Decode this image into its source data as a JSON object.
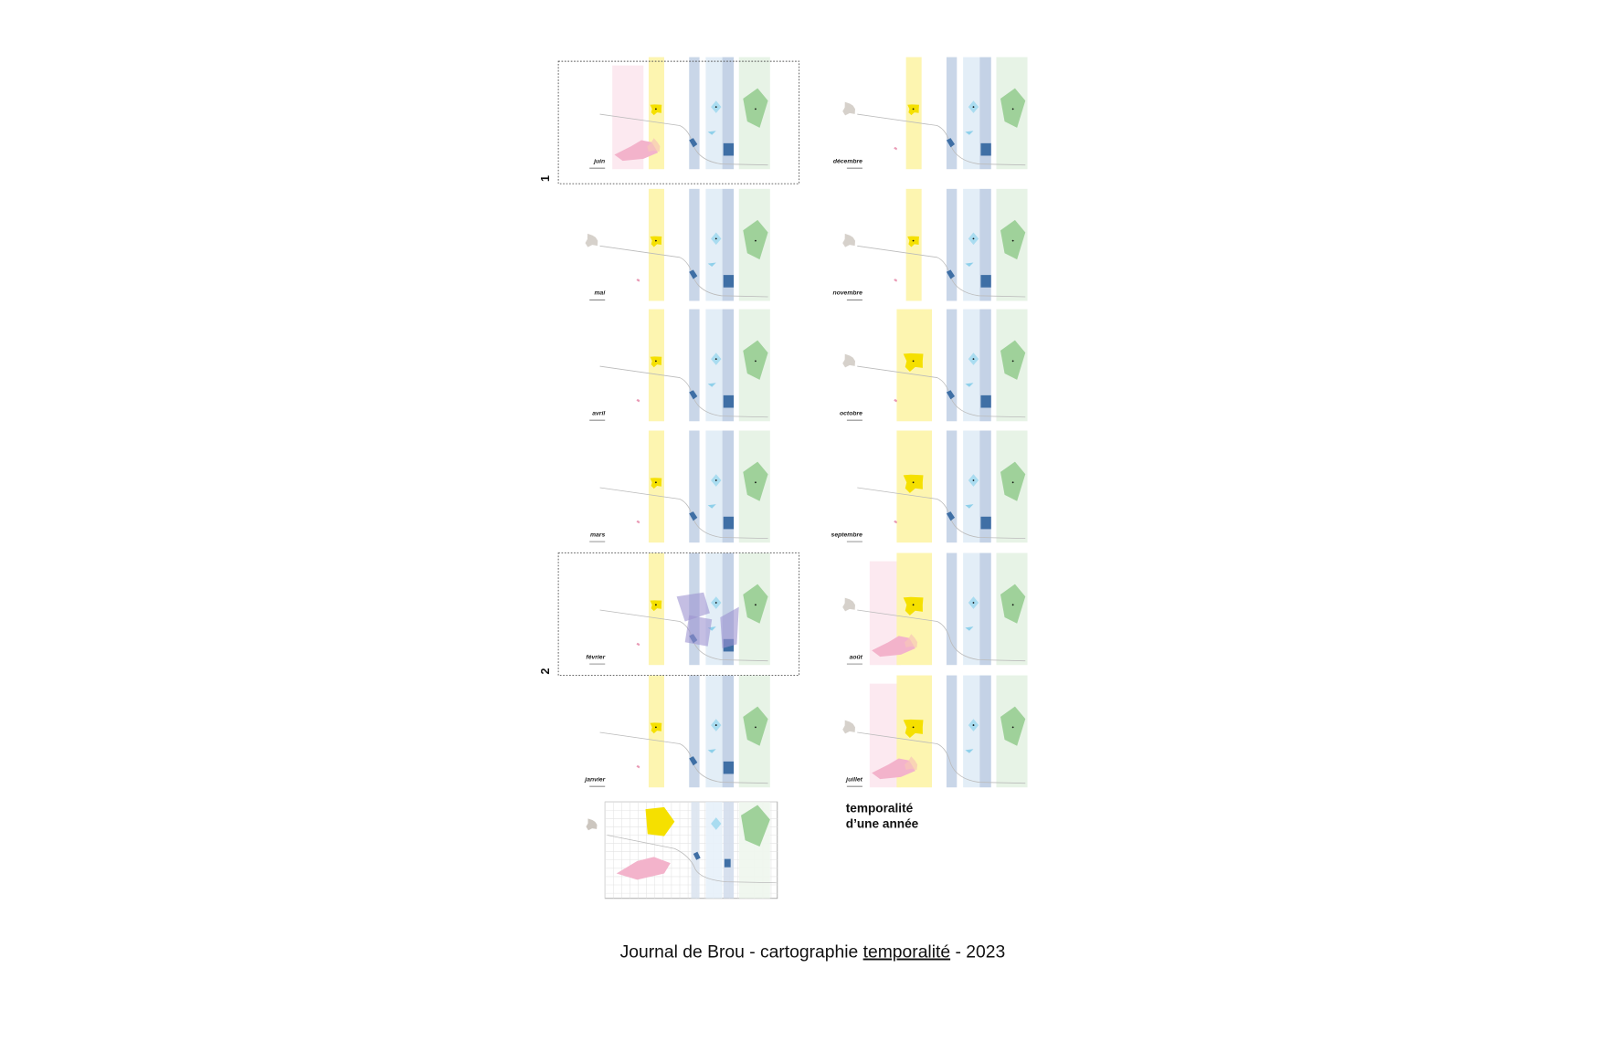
{
  "markers": [
    "1",
    "2"
  ],
  "panels": {
    "left": [
      "juin",
      "mai",
      "avril",
      "mars",
      "février",
      "janvier"
    ],
    "right": [
      "décembre",
      "novembre",
      "octobre",
      "septembre",
      "août",
      "juillet"
    ]
  },
  "legend": {
    "line1": "temporalité",
    "line2": "d’une année"
  },
  "caption": {
    "before": "Journal de Brou - cartographie ",
    "highlight": "temporalité",
    "after": " - 2023"
  }
}
